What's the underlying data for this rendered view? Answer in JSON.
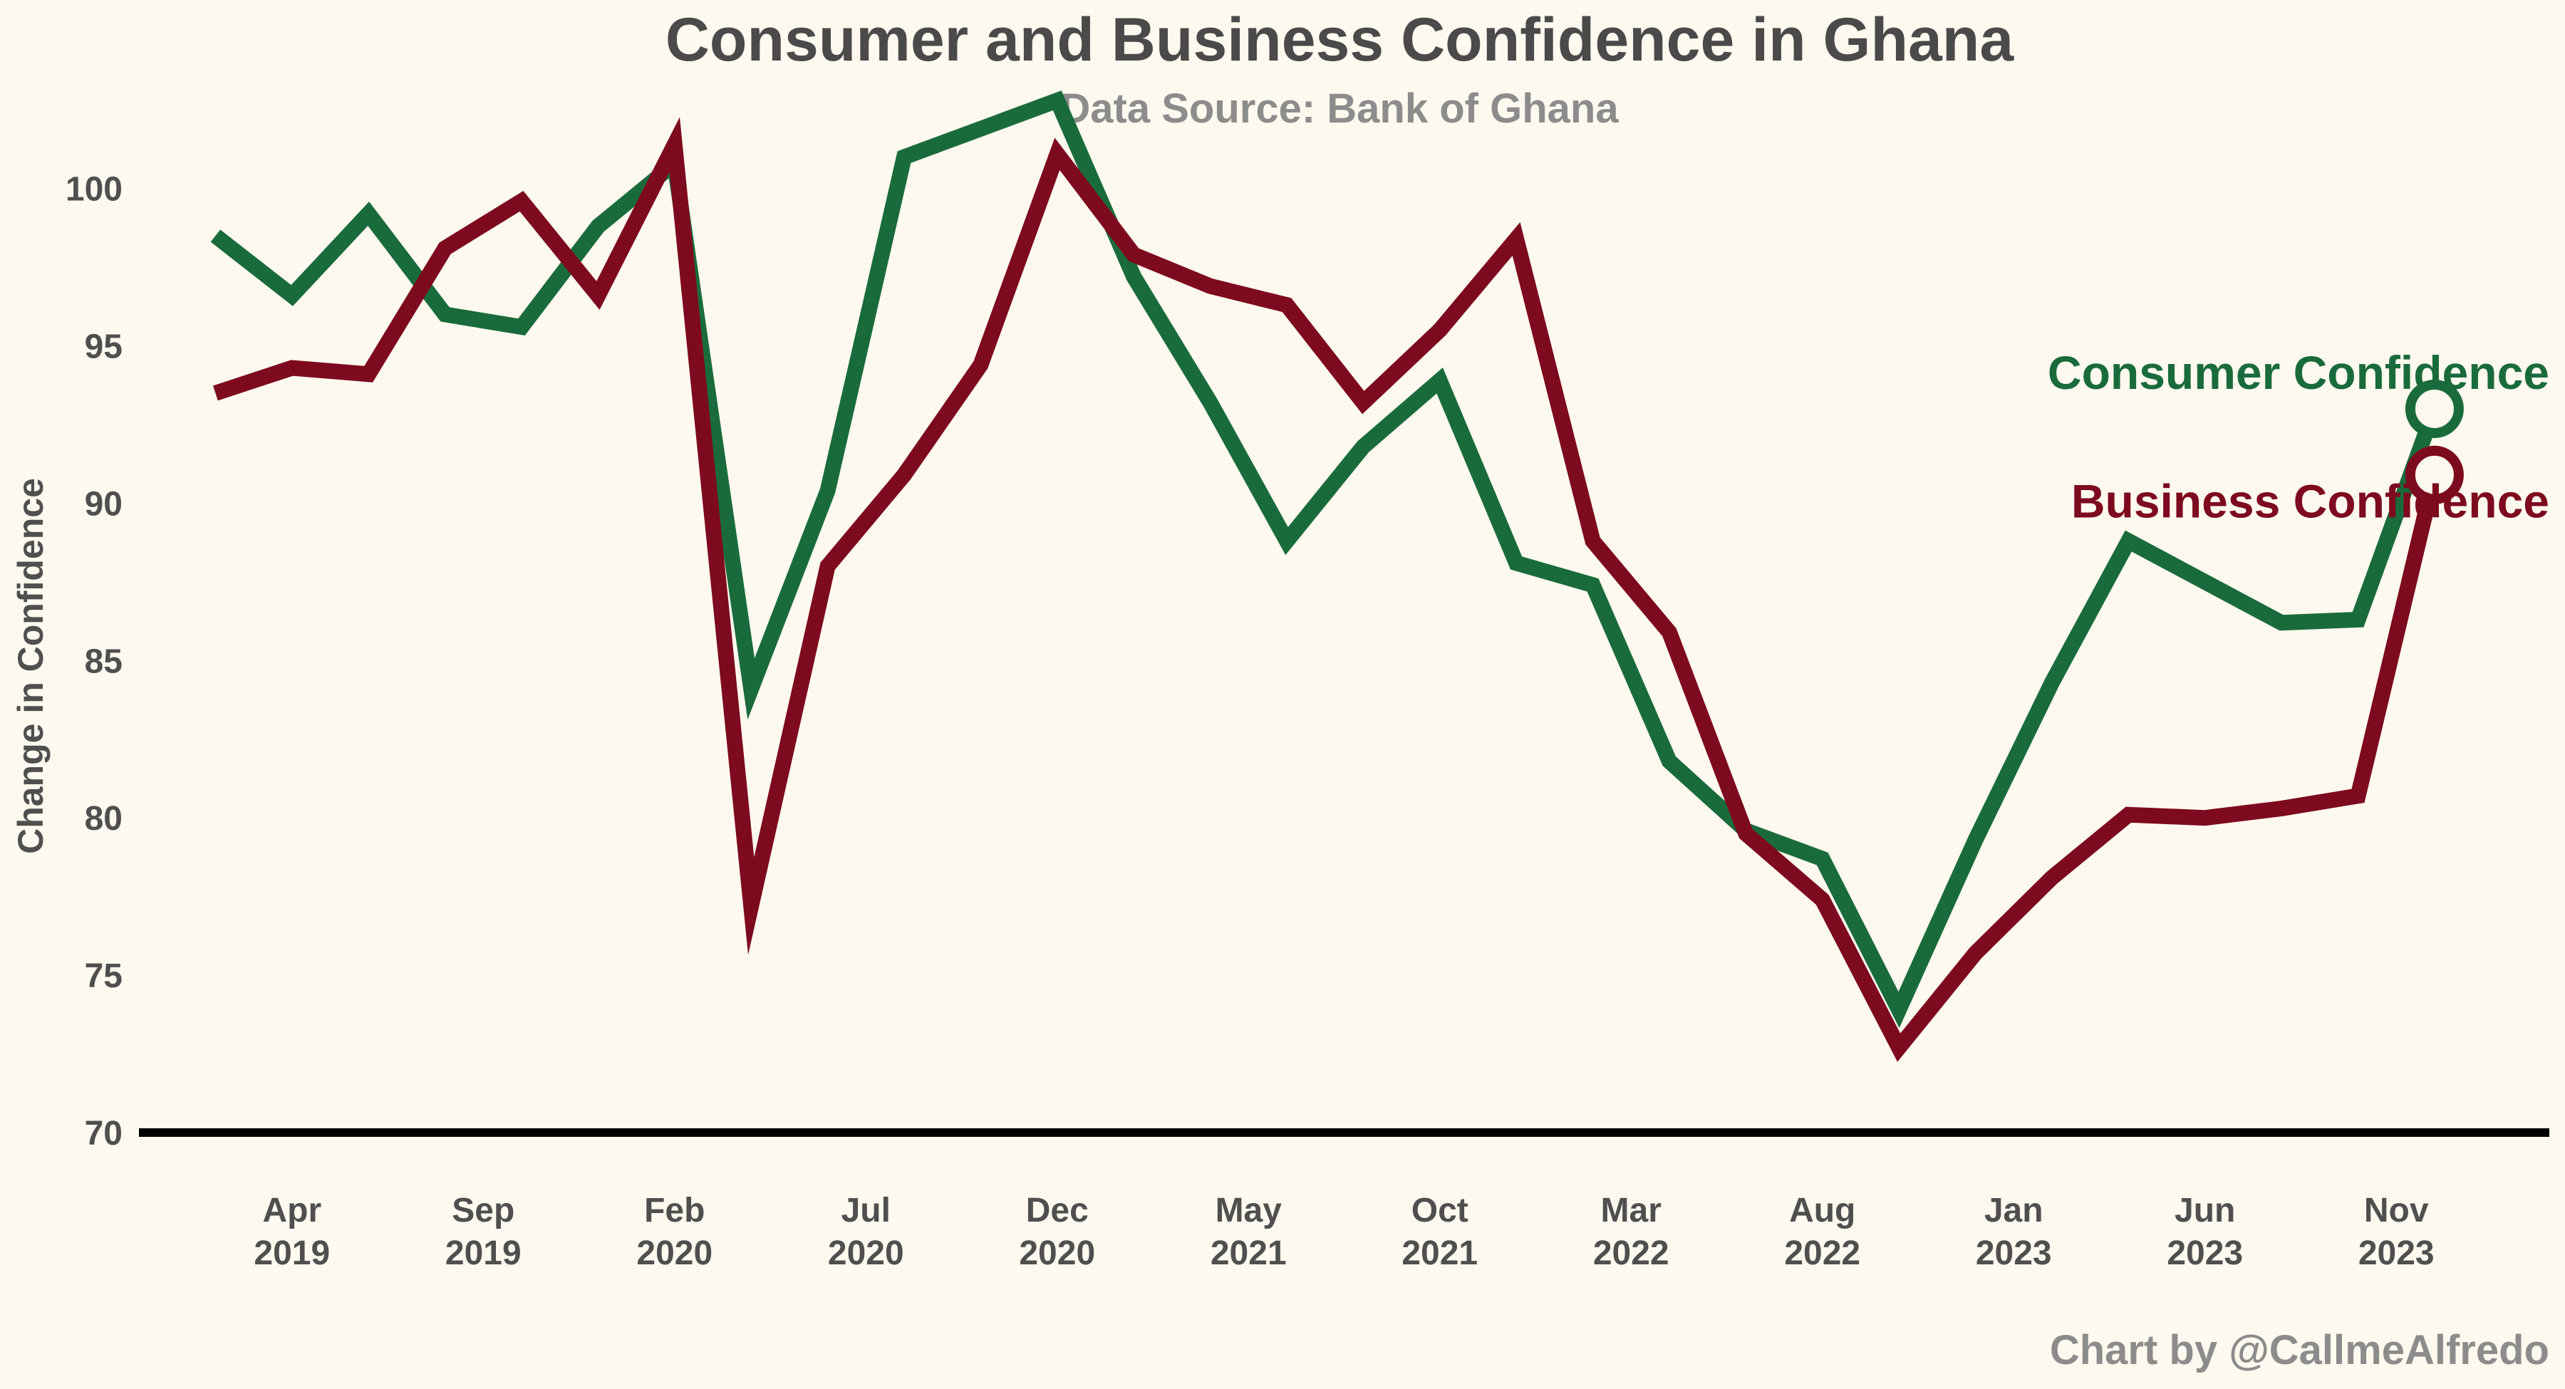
{
  "chart_data": {
    "type": "line",
    "title": "Consumer and Business Confidence in Ghana",
    "subtitle": "Data Source: Bank of Ghana",
    "ylabel": "Change in Confidence",
    "xlabel": "",
    "credit": "Chart by @CallmeAlfredo",
    "ylim": [
      70,
      104
    ],
    "yticks": [
      70,
      75,
      80,
      85,
      90,
      95,
      100
    ],
    "grid": false,
    "x_start": "2019-02",
    "x_range": [
      "2018-12",
      "2024-03"
    ],
    "xticks": [
      {
        "x": "2019-04",
        "month": "Apr",
        "year": "2019"
      },
      {
        "x": "2019-09",
        "month": "Sep",
        "year": "2019"
      },
      {
        "x": "2020-02",
        "month": "Feb",
        "year": "2020"
      },
      {
        "x": "2020-07",
        "month": "Jul",
        "year": "2020"
      },
      {
        "x": "2020-12",
        "month": "Dec",
        "year": "2020"
      },
      {
        "x": "2021-05",
        "month": "May",
        "year": "2021"
      },
      {
        "x": "2021-10",
        "month": "Oct",
        "year": "2021"
      },
      {
        "x": "2022-03",
        "month": "Mar",
        "year": "2022"
      },
      {
        "x": "2022-08",
        "month": "Aug",
        "year": "2022"
      },
      {
        "x": "2023-01",
        "month": "Jan",
        "year": "2023"
      },
      {
        "x": "2023-06",
        "month": "Jun",
        "year": "2023"
      },
      {
        "x": "2023-11",
        "month": "Nov",
        "year": "2023"
      }
    ],
    "series": [
      {
        "name": "Consumer Confidence",
        "color": "#1a6b3c",
        "x": [
          "2019-02",
          "2019-04",
          "2019-06",
          "2019-08",
          "2019-10",
          "2019-12",
          "2020-02",
          "2020-04",
          "2020-06",
          "2020-08",
          "2020-10",
          "2020-12",
          "2021-02",
          "2021-04",
          "2021-06",
          "2021-08",
          "2021-10",
          "2021-12",
          "2022-02",
          "2022-04",
          "2022-06",
          "2022-08",
          "2022-10",
          "2022-12",
          "2023-02",
          "2023-04",
          "2023-06",
          "2023-08",
          "2023-10",
          "2023-12"
        ],
        "values": [
          98.5,
          96.6,
          99.2,
          96.0,
          95.6,
          98.8,
          100.8,
          84.1,
          90.4,
          101.0,
          101.9,
          102.8,
          97.2,
          93.2,
          88.8,
          91.8,
          93.9,
          88.1,
          87.4,
          81.8,
          79.6,
          78.7,
          73.9,
          79.3,
          84.3,
          88.8,
          87.5,
          86.2,
          86.3,
          93.0
        ]
      },
      {
        "name": "Business Confidence",
        "color": "#7d0a1f",
        "x": [
          "2019-02",
          "2019-04",
          "2019-06",
          "2019-08",
          "2019-10",
          "2019-12",
          "2020-02",
          "2020-04",
          "2020-06",
          "2020-08",
          "2020-10",
          "2020-12",
          "2021-02",
          "2021-04",
          "2021-06",
          "2021-08",
          "2021-10",
          "2021-12",
          "2022-02",
          "2022-04",
          "2022-06",
          "2022-08",
          "2022-10",
          "2022-12",
          "2023-02",
          "2023-04",
          "2023-06",
          "2023-08",
          "2023-10",
          "2023-12"
        ],
        "values": [
          93.5,
          94.3,
          94.1,
          98.1,
          99.6,
          96.6,
          101.4,
          77.2,
          88.0,
          90.9,
          94.4,
          101.1,
          97.9,
          96.9,
          96.3,
          93.2,
          95.5,
          98.4,
          88.8,
          85.9,
          79.5,
          77.4,
          72.7,
          75.7,
          78.1,
          80.1,
          80.0,
          80.3,
          80.7,
          90.9
        ]
      }
    ]
  }
}
